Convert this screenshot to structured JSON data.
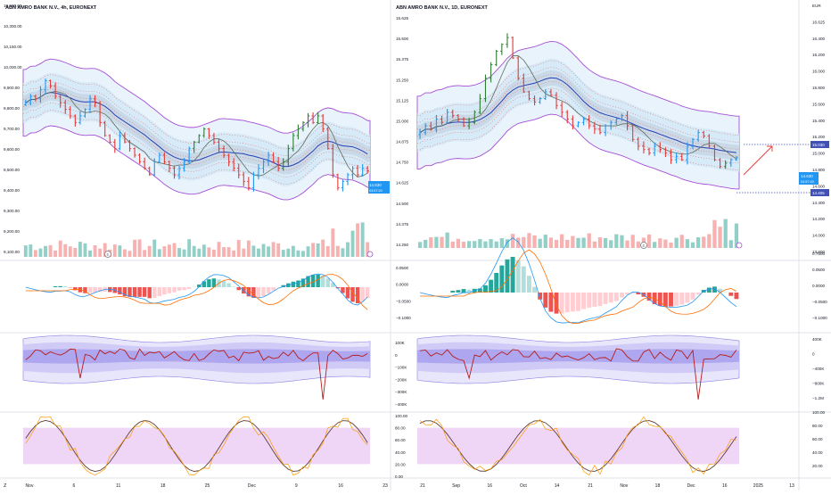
{
  "left": {
    "title": "ABN AMRO BANK N.V., 4h, EURONEXT",
    "price_ticks": [
      "10,600.00",
      "10,300.00",
      "10,150.00",
      "10,000.00",
      "9,900.00",
      "9,800.00",
      "9,700.00",
      "9,600.00",
      "9,500.00",
      "9,400.00",
      "9,300.00",
      "9,200.00",
      "9,100.00"
    ],
    "macd_ticks": [],
    "flow_ticks": [
      "100K",
      "0",
      "−100K",
      "−200K",
      "−300K",
      "−400K"
    ],
    "osc_ticks": [
      "100.00",
      "80.00",
      "60.00",
      "40.00",
      "20.00",
      "0.00"
    ],
    "price_label": "14.630",
    "price_sub": "03:57:20",
    "x_ticks": [
      "Nov",
      "6",
      "11",
      "18",
      "25",
      "Dec",
      "9",
      "16",
      "23"
    ],
    "event_badge": "E",
    "corner_label": "Z",
    "bottom_corner": "Z"
  },
  "right": {
    "title": "ABN AMRO BANK N.V., 1D, EURONEXT",
    "currency": "EUR",
    "price_ticks": [
      "EUR",
      "16.625",
      "16.400",
      "16.200",
      "16.000",
      "15.800",
      "15.600",
      "15.400",
      "15.200",
      "15.000",
      "14.800",
      "14.600",
      "14.400",
      "14.200",
      "14.000",
      "13.800"
    ],
    "left_axis_ticks": [
      "15.625",
      "15.500",
      "15.375",
      "15.250",
      "15.125",
      "15.000",
      "14.875",
      "14.750",
      "14.625",
      "14.500",
      "14.375",
      "14.250"
    ],
    "macd_ticks": [
      "0.7500",
      "0.0500",
      "0.0000",
      "−0.0500",
      "−0.1000"
    ],
    "left_macd_ticks": [
      "0.0500",
      "0.0000",
      "−0.0500",
      "−0.1000"
    ],
    "flow_ticks": [
      "400K",
      "0",
      "−400K",
      "−800K",
      "−1.2M"
    ],
    "osc_ticks": [
      "100.00",
      "80.00",
      "60.00",
      "40.00",
      "20.00"
    ],
    "target_upper": "15.030",
    "target_lower": "14.405",
    "price_label": "14.630",
    "price_sub": "03:57:20",
    "x_ticks": [
      "21",
      "Sep",
      "16",
      "Oct",
      "14",
      "21",
      "Nov",
      "18",
      "Dec",
      "16",
      "2025",
      "13"
    ],
    "event_badge": "E"
  },
  "chart_data": [
    {
      "type": "candlestick",
      "title": "ABN AMRO BANK N.V., 4h, EURONEXT",
      "x_labels": [
        "Nov",
        "6",
        "11",
        "18",
        "25",
        "Dec",
        "9",
        "16",
        "23"
      ],
      "y_range": [
        9100,
        10600
      ],
      "closes": [
        9950,
        10000,
        9980,
        10050,
        10120,
        10080,
        10000,
        9950,
        9900,
        9850,
        9800,
        9850,
        9900,
        9980,
        9950,
        9800,
        9700,
        9650,
        9600,
        9700,
        9650,
        9600,
        9550,
        9500,
        9450,
        9400,
        9500,
        9550,
        9500,
        9450,
        9400,
        9450,
        9500,
        9600,
        9650,
        9700,
        9750,
        9700,
        9650,
        9600,
        9550,
        9500,
        9450,
        9400,
        9350,
        9300,
        9400,
        9450,
        9500,
        9550,
        9500,
        9450,
        9500,
        9600,
        9700,
        9750,
        9800,
        9850,
        9800,
        9850,
        9750,
        9600,
        9400,
        9300,
        9350,
        9400,
        9450,
        9400,
        9450,
        9430
      ],
      "indicators": [
        "keltner bands",
        "macd histogram",
        "money flow",
        "stochastic"
      ]
    },
    {
      "type": "candlestick",
      "title": "ABN AMRO BANK N.V., 1D, EURONEXT",
      "x_labels": [
        "21",
        "Sep",
        "16",
        "Oct",
        "14",
        "21",
        "Nov",
        "18",
        "Dec",
        "16",
        "2025",
        "13"
      ],
      "y_range": [
        13.8,
        16.625
      ],
      "closes": [
        15.0,
        15.1,
        15.05,
        15.2,
        15.15,
        15.3,
        15.25,
        15.2,
        15.1,
        15.15,
        15.3,
        15.5,
        15.8,
        16.0,
        16.2,
        16.3,
        16.4,
        16.1,
        15.8,
        15.6,
        15.5,
        15.45,
        15.5,
        15.6,
        15.55,
        15.4,
        15.3,
        15.2,
        15.1,
        15.15,
        15.2,
        15.1,
        15.05,
        15.0,
        15.1,
        15.15,
        15.2,
        15.25,
        15.1,
        14.9,
        14.8,
        14.75,
        14.7,
        14.8,
        14.75,
        14.7,
        14.6,
        14.65,
        14.6,
        14.8,
        14.9,
        15.0,
        14.95,
        14.8,
        14.6,
        14.5,
        14.55,
        14.6,
        14.63
      ],
      "annotations": [
        "15.030",
        "14.405"
      ],
      "indicators": [
        "keltner bands",
        "macd histogram",
        "money flow",
        "stochastic"
      ]
    }
  ]
}
